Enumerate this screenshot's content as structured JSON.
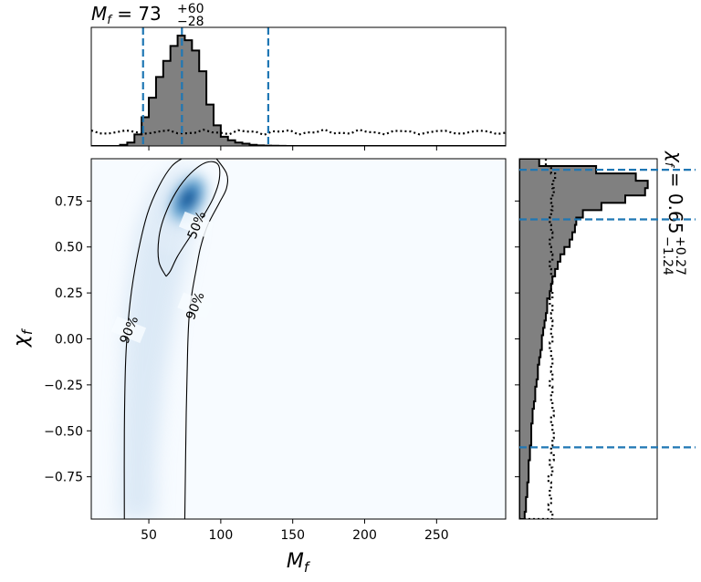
{
  "chart_data": [
    {
      "type": "heatmap",
      "panel": "joint",
      "xlabel": "M_f",
      "ylabel": "χ_f",
      "xlim": [
        10,
        298
      ],
      "ylim": [
        -0.98,
        0.98
      ],
      "xticks": [
        50,
        100,
        150,
        200,
        250
      ],
      "xtick_labels": [
        "50",
        "100",
        "150",
        "200",
        "250"
      ],
      "yticks": [
        0.75,
        0.5,
        0.25,
        0.0,
        -0.25,
        -0.5,
        -0.75
      ],
      "ytick_labels": [
        "0.75",
        "0.50",
        "0.25",
        "0.00",
        "−0.25",
        "−0.50",
        "−0.75"
      ],
      "density_peak": {
        "x": 80,
        "y": 0.78
      },
      "colormap": "Blues",
      "contours": [
        {
          "label": "50%",
          "points": [
            [
              62,
              0.34
            ],
            [
              57,
              0.42
            ],
            [
              57,
              0.55
            ],
            [
              61,
              0.67
            ],
            [
              69,
              0.8
            ],
            [
              79,
              0.9
            ],
            [
              90,
              0.96
            ],
            [
              98,
              0.95
            ],
            [
              99,
              0.87
            ],
            [
              95,
              0.77
            ],
            [
              88,
              0.67
            ],
            [
              79,
              0.56
            ],
            [
              70,
              0.45
            ],
            [
              65,
              0.37
            ],
            [
              62,
              0.34
            ]
          ]
        },
        {
          "label": "90%",
          "points": [
            [
              33,
              -0.98
            ],
            [
              33,
              -0.5
            ],
            [
              34,
              -0.1
            ],
            [
              37,
              0.2
            ],
            [
              42,
              0.45
            ],
            [
              49,
              0.68
            ],
            [
              57,
              0.83
            ],
            [
              66,
              0.94
            ],
            [
              75,
              0.99
            ]
          ]
        },
        {
          "label": "90%",
          "points": [
            [
              96,
              0.99
            ],
            [
              104,
              0.9
            ],
            [
              104,
              0.82
            ],
            [
              99,
              0.74
            ],
            [
              91,
              0.62
            ],
            [
              86,
              0.5
            ],
            [
              83,
              0.38
            ],
            [
              80,
              0.25
            ],
            [
              78,
              0.12
            ],
            [
              77,
              -0.05
            ],
            [
              76,
              -0.4
            ],
            [
              75,
              -0.98
            ]
          ]
        }
      ],
      "contour_labels": [
        {
          "text": "50%",
          "x": 83,
          "y": 0.62
        },
        {
          "text": "90%",
          "x": 36,
          "y": 0.05
        },
        {
          "text": "90%",
          "x": 82,
          "y": 0.18
        }
      ]
    },
    {
      "type": "histogram",
      "panel": "top-marginal",
      "title_lhs": "M_f",
      "title_value": "73",
      "title_plus": "+60",
      "title_minus": "−28",
      "xlim": [
        10,
        298
      ],
      "bin_edges": [
        10,
        15,
        20,
        25,
        30,
        35,
        40,
        45,
        50,
        55,
        60,
        65,
        70,
        75,
        80,
        85,
        90,
        95,
        100,
        105,
        110,
        115,
        120,
        125,
        130,
        135,
        140,
        145,
        150
      ],
      "posterior_counts": [
        0,
        0,
        0,
        0,
        0.01,
        0.03,
        0.1,
        0.25,
        0.42,
        0.6,
        0.74,
        0.87,
        0.96,
        0.92,
        0.83,
        0.65,
        0.36,
        0.18,
        0.08,
        0.05,
        0.03,
        0.02,
        0.01,
        0.005,
        0.003,
        0.002,
        0.001,
        0
      ],
      "prior_level": 0.12,
      "credible_lines": [
        46,
        73,
        133
      ]
    },
    {
      "type": "histogram",
      "panel": "right-marginal",
      "title_lhs": "χ_f",
      "title_value": "0.65",
      "title_plus": "+0.27",
      "title_minus": "−1.24",
      "ylim": [
        -0.98,
        0.98
      ],
      "bin_edges": [
        -0.98,
        -0.94,
        -0.9,
        -0.86,
        -0.82,
        -0.78,
        -0.74,
        -0.7,
        -0.66,
        -0.62,
        -0.58,
        -0.54,
        -0.5,
        -0.46,
        -0.42,
        -0.38,
        -0.34,
        -0.3,
        -0.26,
        -0.22,
        -0.18,
        -0.14,
        -0.1,
        -0.06,
        -0.02,
        0.02,
        0.06,
        0.1,
        0.14,
        0.18,
        0.22,
        0.26,
        0.3,
        0.34,
        0.38,
        0.42,
        0.46,
        0.5,
        0.54,
        0.58,
        0.62,
        0.66,
        0.7,
        0.74,
        0.78,
        0.82,
        0.86,
        0.9,
        0.94,
        0.98
      ],
      "posterior_counts": [
        0.04,
        0.05,
        0.05,
        0.06,
        0.06,
        0.07,
        0.07,
        0.07,
        0.08,
        0.08,
        0.09,
        0.09,
        0.09,
        0.1,
        0.1,
        0.11,
        0.12,
        0.12,
        0.13,
        0.14,
        0.14,
        0.15,
        0.16,
        0.17,
        0.17,
        0.18,
        0.19,
        0.2,
        0.21,
        0.21,
        0.23,
        0.24,
        0.25,
        0.27,
        0.29,
        0.31,
        0.34,
        0.38,
        0.4,
        0.42,
        0.43,
        0.48,
        0.62,
        0.8,
        0.95,
        0.97,
        0.88,
        0.58,
        0.15
      ],
      "prior_counts": [
        0.25,
        0.22,
        0.24,
        0.23,
        0.24,
        0.22,
        0.25,
        0.23,
        0.26,
        0.24,
        0.25,
        0.26,
        0.25,
        0.24,
        0.26,
        0.25,
        0.24,
        0.25,
        0.23,
        0.25,
        0.24,
        0.25,
        0.24,
        0.23,
        0.25,
        0.24,
        0.25,
        0.24,
        0.25,
        0.23,
        0.25,
        0.24,
        0.25,
        0.24,
        0.23,
        0.25,
        0.24,
        0.23,
        0.25,
        0.24,
        0.23,
        0.24,
        0.25,
        0.24,
        0.26,
        0.25,
        0.27,
        0.24,
        0.2
      ],
      "credible_lines": [
        -0.59,
        0.65,
        0.92
      ]
    }
  ]
}
